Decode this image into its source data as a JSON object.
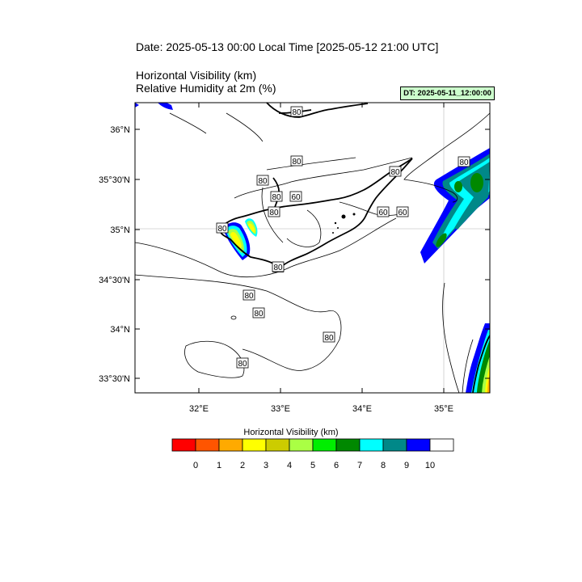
{
  "header": {
    "date_title": "Date: 2025-05-13  00:00 Local Time [2025-05-12  21:00 UTC]",
    "variable_1": "Horizontal Visibility   (km)",
    "variable_2": "Relative Humidity at 2m   (%)",
    "dt_badge": "DT: 2025-05-11_12:00:00"
  },
  "map": {
    "lat_labels": [
      "36°N",
      "35°30'N",
      "35°N",
      "34°30'N",
      "34°N",
      "33°30'N"
    ],
    "lon_labels": [
      "32°E",
      "33°E",
      "34°E",
      "35°E"
    ],
    "contour_labels": [
      "80",
      "80",
      "80",
      "80",
      "80",
      "60",
      "60",
      "80",
      "80",
      "80",
      "80",
      "80",
      "80",
      "80",
      "80",
      "60"
    ],
    "colors": {
      "coast": "#000000",
      "contour": "#000000",
      "grid": "#cccccc"
    }
  },
  "colorbar": {
    "title": "Horizontal Visibility  (km)",
    "colors": [
      "#ff0000",
      "#ff5500",
      "#ffaa00",
      "#ffff00",
      "#cccc00",
      "#aaff44",
      "#00ee00",
      "#008800",
      "#00ffff",
      "#008888",
      "#0000ff",
      "#ffffff"
    ],
    "tick_labels": [
      "0",
      "1",
      "2",
      "3",
      "4",
      "5",
      "6",
      "7",
      "8",
      "9",
      "10"
    ]
  }
}
